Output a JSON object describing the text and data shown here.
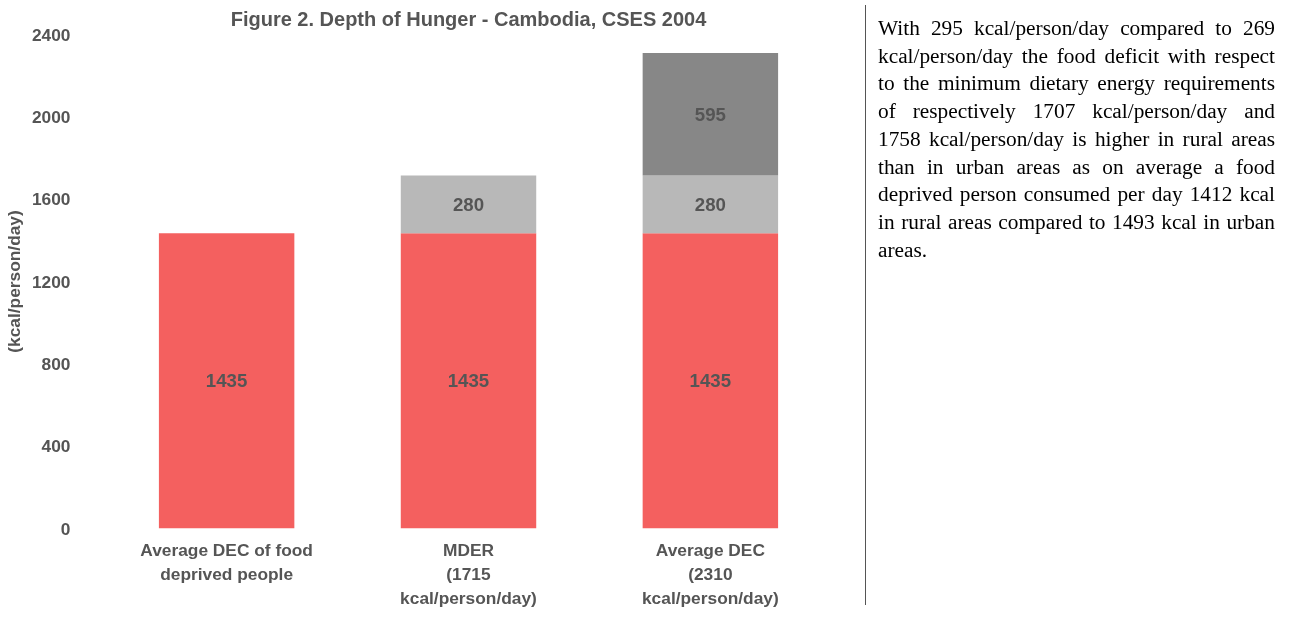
{
  "chart_data": {
    "type": "bar",
    "title": "Figure 2. Depth of Hunger - Cambodia, CSES 2004",
    "ylabel": "(kcal/person/day)",
    "categories": [
      "Average DEC of food\ndeprived people",
      "MDER\n(1715\nkcal/person/day)",
      "Average DEC\n(2310\nkcal/person/day)"
    ],
    "stacked": true,
    "series": [
      {
        "color": "#f4605f",
        "values": [
          1435,
          1435,
          1435
        ]
      },
      {
        "color": "#b8b8b8",
        "values": [
          null,
          280,
          280
        ]
      },
      {
        "color": "#878787",
        "values": [
          null,
          null,
          595
        ]
      }
    ],
    "ylim": [
      0,
      2400
    ],
    "yticks": [
      0,
      400,
      800,
      1200,
      1600,
      2000,
      2400
    ],
    "grid": false,
    "data_labels": true,
    "annotations": [
      "With 295 kcal/person/day compared to 269 kcal/person/day the food deficit with respect to the minimum dietary energy requirements of respectively 1707 kcal/person/day and 1758 kcal/person/day is higher in rural areas than in urban areas as on average a food deprived person consumed per day 1412 kcal in rural areas compared to 1493 kcal in urban areas."
    ]
  }
}
